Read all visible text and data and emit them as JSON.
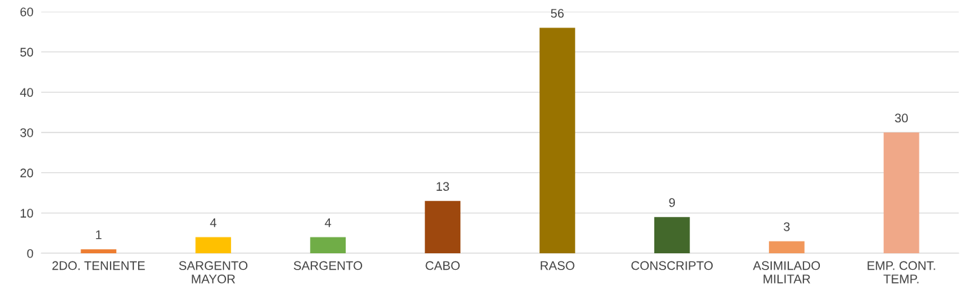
{
  "chart_data": {
    "type": "bar",
    "categories": [
      "2DO. TENIENTE",
      "SARGENTO\nMAYOR",
      "SARGENTO",
      "CABO",
      "RASO",
      "CONSCRIPTO",
      "ASIMILADO\nMILITAR",
      "EMP. CONT.\nTEMP."
    ],
    "values": [
      1,
      4,
      4,
      13,
      56,
      9,
      3,
      30
    ],
    "colors": [
      "#ed7d31",
      "#ffc000",
      "#70ad47",
      "#9e480e",
      "#997300",
      "#43682b",
      "#f1975a",
      "#f0a888"
    ],
    "ylim": [
      0,
      60
    ],
    "yticks": [
      0,
      10,
      20,
      30,
      40,
      50,
      60
    ],
    "grid": "y",
    "data_labels": true
  }
}
